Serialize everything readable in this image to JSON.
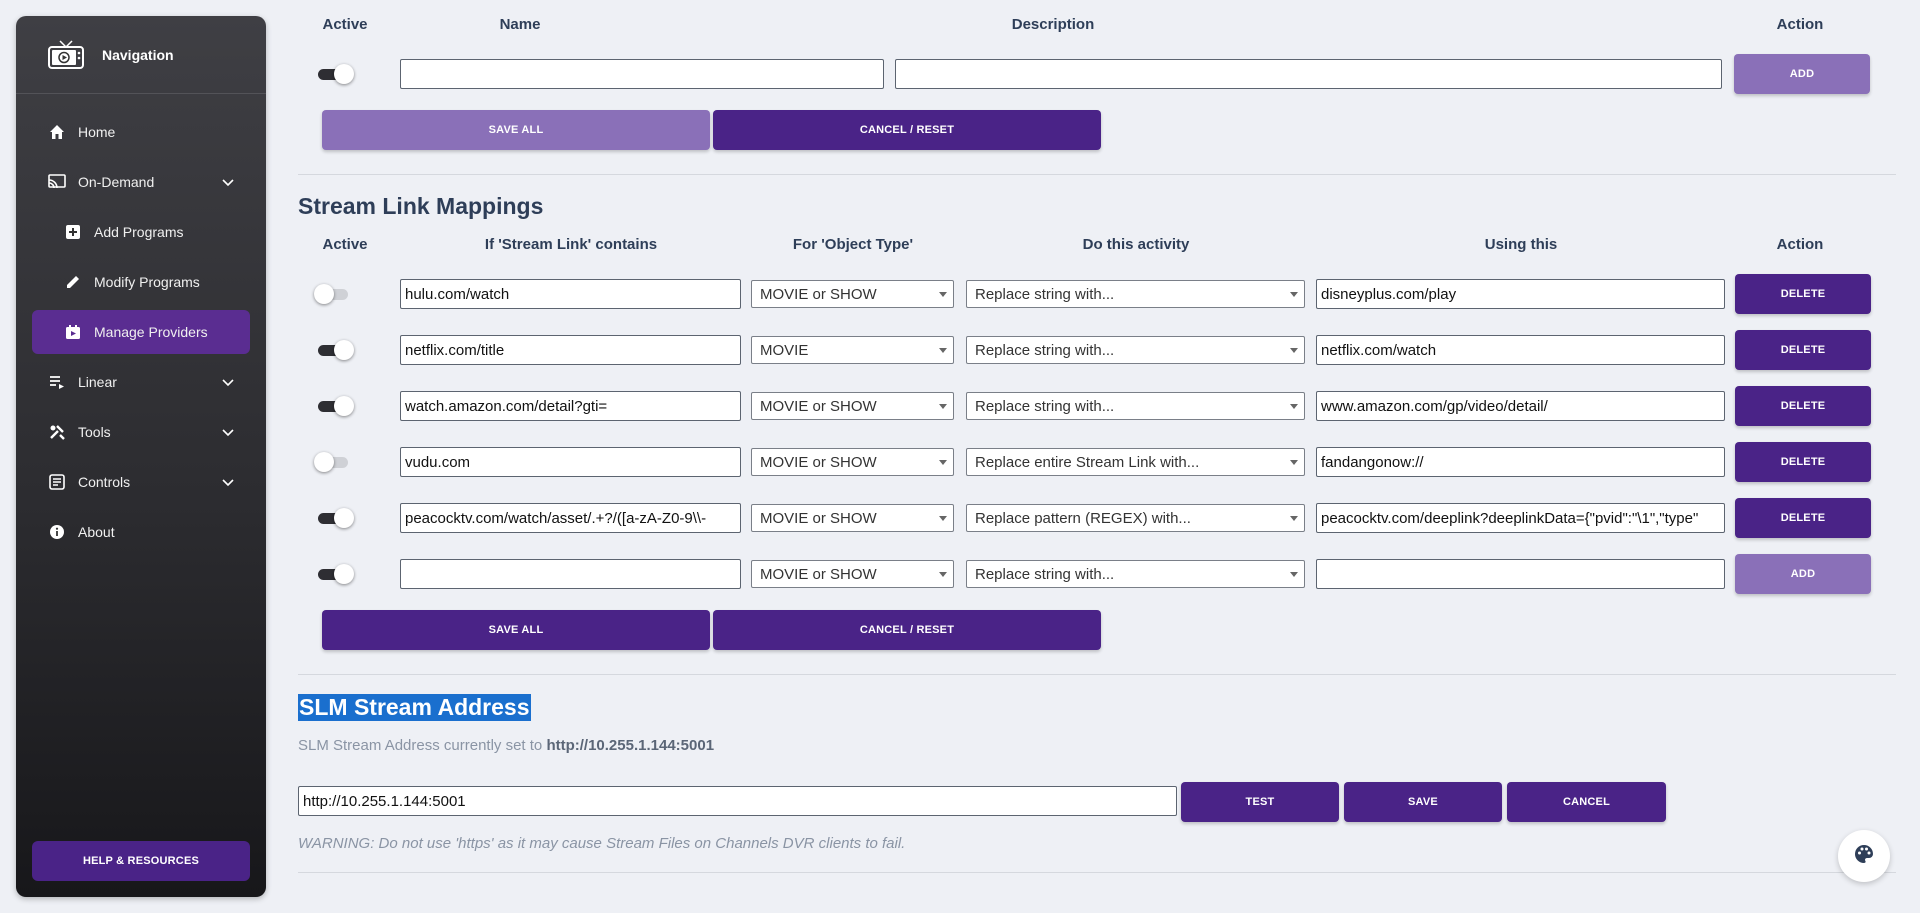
{
  "sidebar": {
    "title": "Navigation",
    "items": [
      {
        "label": "Home",
        "icon": "home-icon"
      },
      {
        "label": "On-Demand",
        "icon": "cast-icon"
      },
      {
        "label": "Add Programs",
        "icon": "plus-box-icon"
      },
      {
        "label": "Modify Programs",
        "icon": "pencil-icon"
      },
      {
        "label": "Manage Providers",
        "icon": "tv-calendar-icon"
      },
      {
        "label": "Linear",
        "icon": "list-icon"
      },
      {
        "label": "Tools",
        "icon": "tools-icon"
      },
      {
        "label": "Controls",
        "icon": "controls-icon"
      },
      {
        "label": "About",
        "icon": "info-icon"
      }
    ],
    "help_label": "HELP & RESOURCES"
  },
  "providers": {
    "headers": {
      "active": "Active",
      "name": "Name",
      "description": "Description",
      "action": "Action"
    },
    "new_row": {
      "name": "",
      "description": "",
      "add_label": "ADD"
    },
    "save_all_label": "SAVE ALL",
    "cancel_label": "CANCEL / RESET"
  },
  "slm": {
    "title": "Stream Link Mappings",
    "headers": {
      "active": "Active",
      "contains": "If 'Stream Link' contains",
      "object_type": "For 'Object Type'",
      "activity": "Do this activity",
      "using": "Using this",
      "action": "Action"
    },
    "rows": [
      {
        "active": false,
        "contains": "hulu.com/watch",
        "object_type": "MOVIE or SHOW",
        "activity": "Replace string with...",
        "using": "disneyplus.com/play",
        "action": "DELETE"
      },
      {
        "active": true,
        "contains": "netflix.com/title",
        "object_type": "MOVIE",
        "activity": "Replace string with...",
        "using": "netflix.com/watch",
        "action": "DELETE"
      },
      {
        "active": true,
        "contains": "watch.amazon.com/detail?gti=",
        "object_type": "MOVIE or SHOW",
        "activity": "Replace string with...",
        "using": "www.amazon.com/gp/video/detail/",
        "action": "DELETE"
      },
      {
        "active": false,
        "contains": "vudu.com",
        "object_type": "MOVIE or SHOW",
        "activity": "Replace entire Stream Link with...",
        "using": "fandangonow://",
        "action": "DELETE"
      },
      {
        "active": true,
        "contains": "peacocktv.com/watch/asset/.+?/([a-zA-Z0-9\\\\-",
        "object_type": "MOVIE or SHOW",
        "activity": "Replace pattern (REGEX) with...",
        "using": "peacocktv.com/deeplink?deeplinkData={\"pvid\":\"\\1\",\"type\"",
        "action": "DELETE"
      },
      {
        "active": true,
        "contains": "",
        "object_type": "MOVIE or SHOW",
        "activity": "Replace string with...",
        "using": "",
        "action": "ADD"
      }
    ],
    "save_all_label": "SAVE ALL",
    "cancel_label": "CANCEL / RESET"
  },
  "stream_address": {
    "title": "SLM Stream Address",
    "current_prefix": "SLM Stream Address currently set to",
    "current_value": "http://10.255.1.144:5001",
    "input_value": "http://10.255.1.144:5001",
    "test_label": "TEST",
    "save_label": "SAVE",
    "cancel_label": "CANCEL",
    "warning": "WARNING: Do not use 'https' as it may cause Stream Files on Channels DVR clients to fail."
  },
  "fab_icon": "palette-icon",
  "colors": {
    "accent": "#4a2387",
    "accent_light": "#8a70b8",
    "active_nav": "#5a2d91"
  }
}
